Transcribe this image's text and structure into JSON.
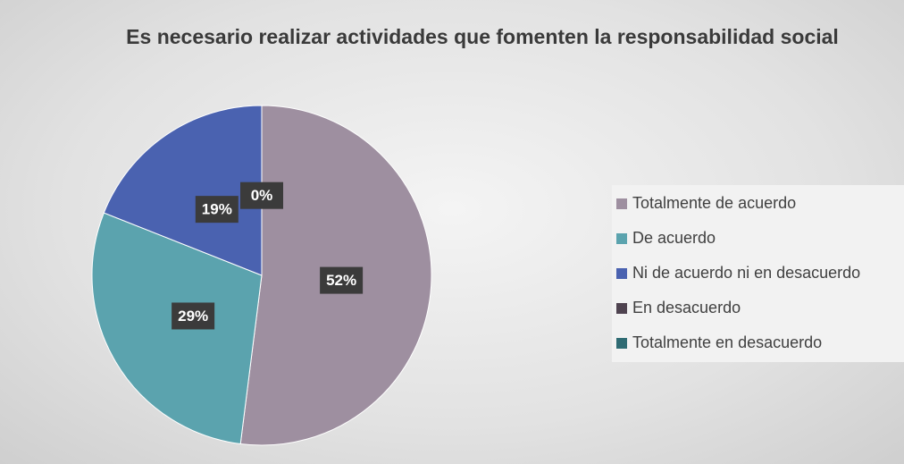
{
  "chart_data": {
    "type": "pie",
    "title": "Es necesario realizar actividades que fomenten la responsabilidad social",
    "categories": [
      "Totalmente de acuerdo",
      "De acuerdo",
      "Ni de acuerdo ni en desacuerdo",
      "En desacuerdo",
      "Totalmente en desacuerdo"
    ],
    "values": [
      52,
      29,
      19,
      0,
      0
    ],
    "value_labels": [
      "52%",
      "29%",
      "19%",
      "0%",
      null
    ],
    "colors": [
      "#9e8fa0",
      "#5ba3ae",
      "#4a62b0",
      "#4f4350",
      "#2f6b73"
    ],
    "legend": "right"
  }
}
